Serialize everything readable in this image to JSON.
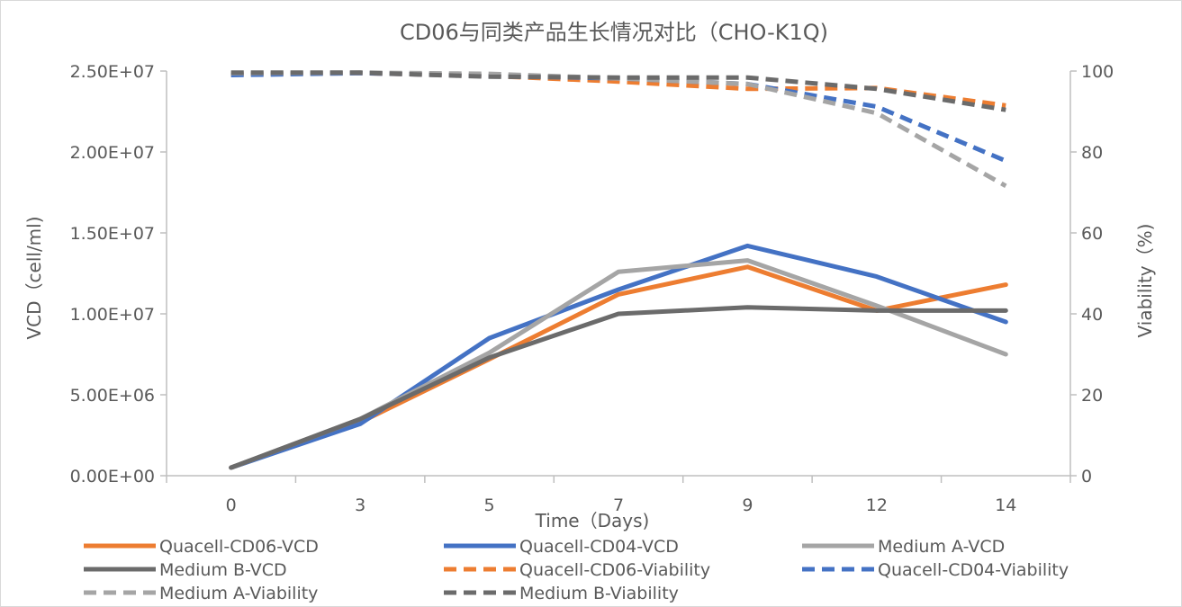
{
  "chart_data": {
    "type": "line",
    "title": "CD06与同类产品生长情况对比（CHO-K1Q)",
    "xlabel": "Time（Days)",
    "ylabel": "VCD（cell/ml)",
    "y2label": "Viability（%)",
    "categories": [
      "0",
      "3",
      "5",
      "7",
      "9",
      "12",
      "14"
    ],
    "ylim": [
      0,
      25000000
    ],
    "y_ticks": [
      "0.00E+00",
      "5.00E+06",
      "1.00E+07",
      "1.50E+07",
      "2.00E+07",
      "2.50E+07"
    ],
    "y2lim": [
      0,
      100
    ],
    "y2_ticks": [
      "0",
      "20",
      "40",
      "60",
      "80",
      "100"
    ],
    "grid": false,
    "legend_position": "bottom",
    "series": [
      {
        "name": "Quacell-CD06-VCD",
        "axis": "left",
        "dash": false,
        "color": "#ED7D31",
        "values": [
          500000,
          3300000,
          7200000,
          11200000,
          12900000,
          10200000,
          11800000
        ]
      },
      {
        "name": "Quacell-CD04-VCD",
        "axis": "left",
        "dash": false,
        "color": "#4472C4",
        "values": [
          500000,
          3200000,
          8500000,
          11500000,
          14200000,
          12300000,
          9500000
        ]
      },
      {
        "name": "Medium A-VCD",
        "axis": "left",
        "dash": false,
        "color": "#A5A5A5",
        "values": [
          500000,
          3500000,
          7600000,
          12600000,
          13300000,
          10500000,
          7500000
        ]
      },
      {
        "name": "Medium B-VCD",
        "axis": "left",
        "dash": false,
        "color": "#6B6B6B",
        "values": [
          500000,
          3500000,
          7300000,
          10000000,
          10400000,
          10200000,
          10200000
        ]
      },
      {
        "name": "Quacell-CD06-Viability",
        "axis": "right",
        "dash": true,
        "color": "#ED7D31",
        "values": [
          99.2,
          99.5,
          98.8,
          97.4,
          95.6,
          95.8,
          91.5
        ]
      },
      {
        "name": "Quacell-CD04-Viability",
        "axis": "right",
        "dash": true,
        "color": "#4472C4",
        "values": [
          99.0,
          99.5,
          98.8,
          98.2,
          96.8,
          91.2,
          77.8
        ]
      },
      {
        "name": "Medium A-Viability",
        "axis": "right",
        "dash": true,
        "color": "#A5A5A5",
        "values": [
          99.5,
          99.6,
          99.3,
          98.2,
          96.8,
          89.6,
          71.6
        ]
      },
      {
        "name": "Medium B-Viability",
        "axis": "right",
        "dash": true,
        "color": "#6B6B6B",
        "values": [
          99.6,
          99.6,
          98.6,
          98.4,
          98.4,
          95.6,
          90.4
        ]
      }
    ]
  }
}
